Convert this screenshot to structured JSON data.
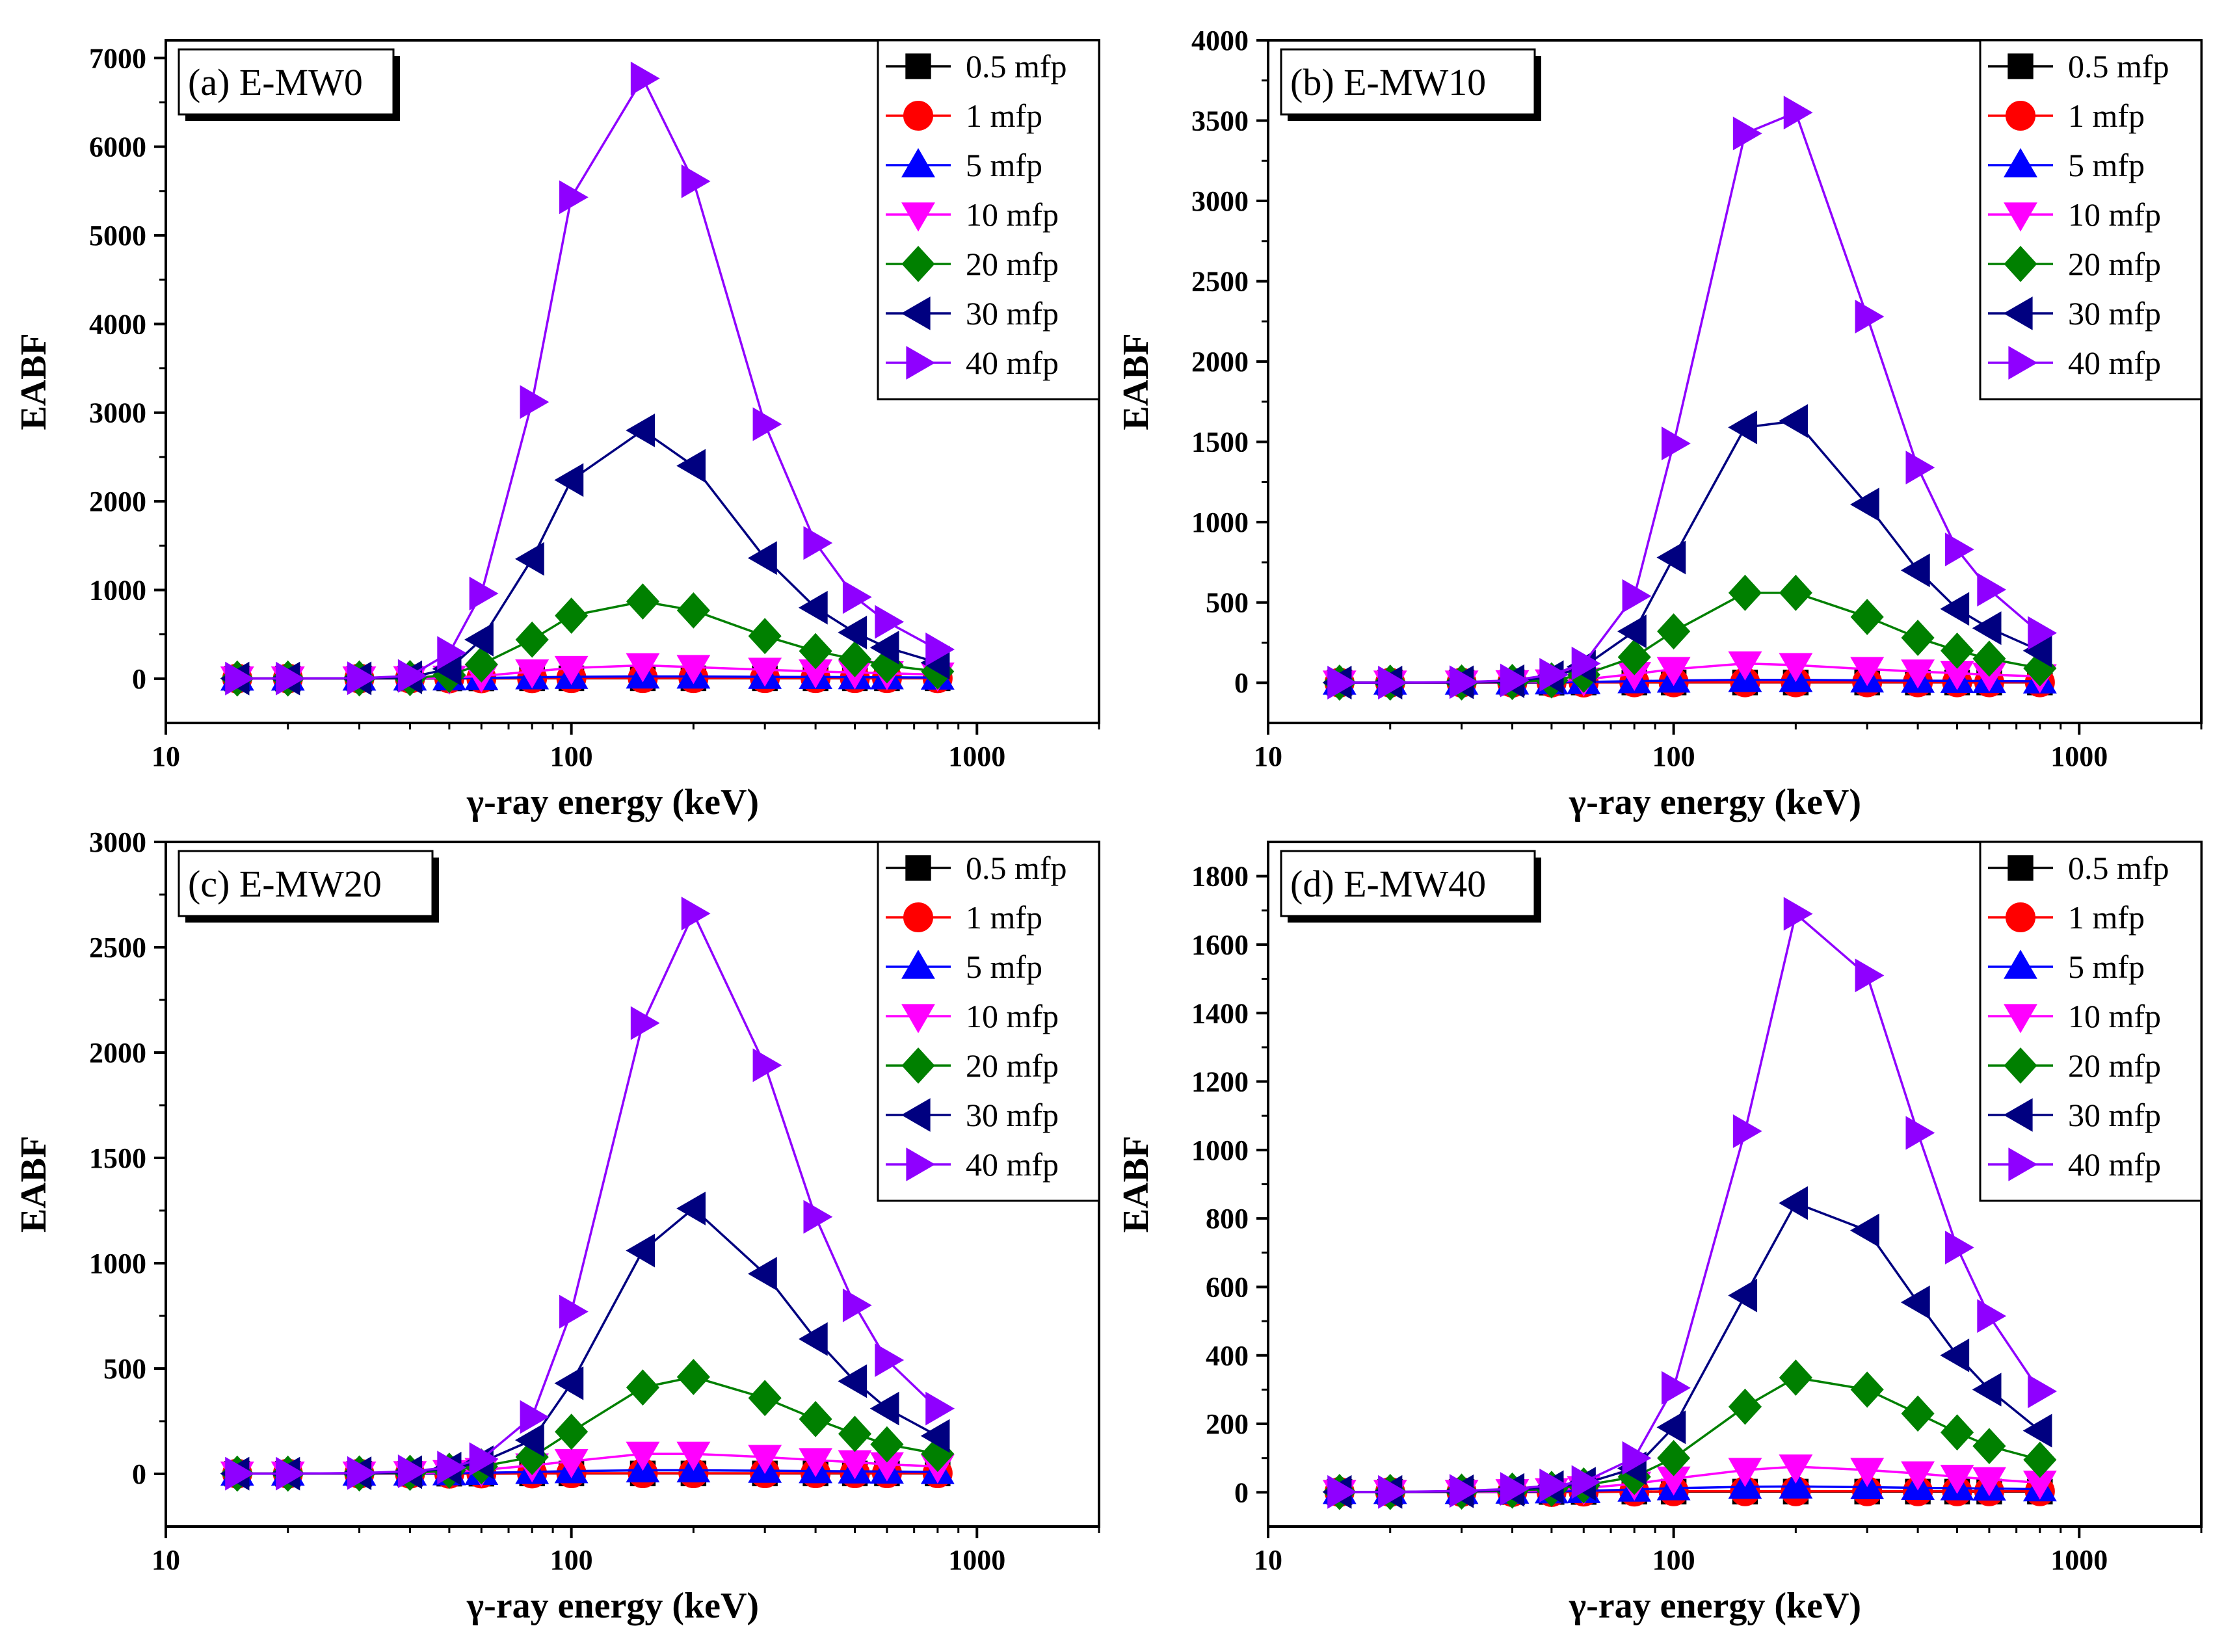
{
  "figure": {
    "colors": {
      "0.5 mfp": "#000000",
      "1 mfp": "#ff0000",
      "5 mfp": "#0000ff",
      "10 mfp": "#ff00ff",
      "20 mfp": "#008000",
      "30 mfp": "#000080",
      "40 mfp": "#8f00ff"
    }
  },
  "chart_data": [
    {
      "type": "line",
      "title": "(a) E-MW0",
      "xlabel": "γ-ray energy (keV)",
      "ylabel": "EABF",
      "xscale": "log",
      "xlim": [
        10,
        2000
      ],
      "ylim": [
        -500,
        7200
      ],
      "x_ticks": [
        10,
        100,
        1000
      ],
      "x_tick_labels": [
        "10",
        "100",
        "1000"
      ],
      "y_ticks": [
        0,
        1000,
        2000,
        3000,
        4000,
        5000,
        6000,
        7000
      ],
      "y_tick_labels": [
        "0",
        "1000",
        "2000",
        "3000",
        "4000",
        "5000",
        "6000",
        "7000"
      ],
      "legend_position": "top-right",
      "x": [
        15,
        20,
        30,
        40,
        50,
        60,
        80,
        100,
        150,
        200,
        300,
        400,
        500,
        600,
        800
      ],
      "series": [
        {
          "name": "0.5 mfp",
          "marker": "square",
          "values": [
            1,
            1,
            1,
            1,
            2,
            2,
            3,
            3,
            3,
            3,
            3,
            3,
            3,
            3,
            3
          ]
        },
        {
          "name": "1 mfp",
          "marker": "circle",
          "values": [
            1,
            1,
            1,
            1,
            2,
            3,
            4,
            5,
            5,
            5,
            5,
            5,
            5,
            5,
            4
          ]
        },
        {
          "name": "5 mfp",
          "marker": "triangle-up",
          "values": [
            1,
            1,
            1,
            2,
            4,
            8,
            15,
            20,
            25,
            24,
            20,
            18,
            16,
            15,
            12
          ]
        },
        {
          "name": "10 mfp",
          "marker": "triangle-down",
          "values": [
            1,
            1,
            1,
            3,
            10,
            30,
            80,
            120,
            150,
            130,
            100,
            80,
            70,
            60,
            45
          ]
        },
        {
          "name": "20 mfp",
          "marker": "diamond",
          "values": [
            1,
            1,
            2,
            6,
            40,
            160,
            440,
            710,
            870,
            770,
            480,
            310,
            220,
            150,
            80
          ]
        },
        {
          "name": "30 mfp",
          "marker": "triangle-left",
          "values": [
            1,
            1,
            3,
            15,
            110,
            440,
            1350,
            2240,
            2800,
            2400,
            1360,
            800,
            520,
            350,
            180
          ]
        },
        {
          "name": "40 mfp",
          "marker": "triangle-right",
          "values": [
            1,
            1,
            5,
            30,
            290,
            960,
            3120,
            5430,
            6770,
            5610,
            2870,
            1530,
            920,
            640,
            330
          ]
        }
      ]
    },
    {
      "type": "line",
      "title": "(b) E-MW10",
      "xlabel": "γ-ray energy (keV)",
      "ylabel": "EABF",
      "xscale": "log",
      "xlim": [
        10,
        2000
      ],
      "ylim": [
        -250,
        4000
      ],
      "x_ticks": [
        10,
        100,
        1000
      ],
      "x_tick_labels": [
        "10",
        "100",
        "1000"
      ],
      "y_ticks": [
        0,
        500,
        1000,
        1500,
        2000,
        2500,
        3000,
        3500,
        4000
      ],
      "y_tick_labels": [
        "0",
        "500",
        "1000",
        "1500",
        "2000",
        "2500",
        "3000",
        "3500",
        "4000"
      ],
      "legend_position": "top-right",
      "x": [
        15,
        20,
        30,
        40,
        50,
        60,
        80,
        100,
        150,
        200,
        300,
        400,
        500,
        600,
        800
      ],
      "series": [
        {
          "name": "0.5 mfp",
          "marker": "square",
          "values": [
            1,
            1,
            1,
            1,
            1,
            2,
            2,
            2,
            2,
            2,
            2,
            2,
            2,
            2,
            2
          ]
        },
        {
          "name": "1 mfp",
          "marker": "circle",
          "values": [
            1,
            1,
            1,
            1,
            2,
            2,
            3,
            3,
            3,
            3,
            3,
            3,
            3,
            3,
            3
          ]
        },
        {
          "name": "5 mfp",
          "marker": "triangle-up",
          "values": [
            1,
            1,
            1,
            2,
            3,
            5,
            10,
            14,
            18,
            18,
            15,
            13,
            12,
            11,
            9
          ]
        },
        {
          "name": "10 mfp",
          "marker": "triangle-down",
          "values": [
            1,
            1,
            1,
            3,
            8,
            20,
            55,
            85,
            120,
            110,
            85,
            70,
            60,
            50,
            40
          ]
        },
        {
          "name": "20 mfp",
          "marker": "diamond",
          "values": [
            1,
            1,
            2,
            5,
            15,
            50,
            160,
            320,
            560,
            560,
            410,
            280,
            200,
            150,
            90
          ]
        },
        {
          "name": "30 mfp",
          "marker": "triangle-left",
          "values": [
            1,
            1,
            3,
            10,
            35,
            100,
            320,
            780,
            1590,
            1630,
            1110,
            700,
            460,
            340,
            200
          ]
        },
        {
          "name": "40 mfp",
          "marker": "triangle-right",
          "values": [
            1,
            1,
            4,
            15,
            50,
            120,
            540,
            1490,
            3420,
            3550,
            2280,
            1340,
            830,
            580,
            310
          ]
        }
      ]
    },
    {
      "type": "line",
      "title": "(c) E-MW20",
      "xlabel": "γ-ray energy (keV)",
      "ylabel": "EABF",
      "xscale": "log",
      "xlim": [
        10,
        2000
      ],
      "ylim": [
        -250,
        3000
      ],
      "x_ticks": [
        10,
        100,
        1000
      ],
      "x_tick_labels": [
        "10",
        "100",
        "1000"
      ],
      "y_ticks": [
        0,
        500,
        1000,
        1500,
        2000,
        2500,
        3000
      ],
      "y_tick_labels": [
        "0",
        "500",
        "1000",
        "1500",
        "2000",
        "2500",
        "3000"
      ],
      "legend_position": "top-right",
      "x": [
        15,
        20,
        30,
        40,
        50,
        60,
        80,
        100,
        150,
        200,
        300,
        400,
        500,
        600,
        800
      ],
      "series": [
        {
          "name": "0.5 mfp",
          "marker": "square",
          "values": [
            1,
            1,
            1,
            1,
            1,
            1,
            2,
            2,
            2,
            2,
            2,
            2,
            2,
            2,
            2
          ]
        },
        {
          "name": "1 mfp",
          "marker": "circle",
          "values": [
            1,
            1,
            1,
            1,
            1,
            2,
            2,
            3,
            3,
            3,
            3,
            3,
            3,
            3,
            3
          ]
        },
        {
          "name": "5 mfp",
          "marker": "triangle-up",
          "values": [
            1,
            1,
            1,
            2,
            3,
            5,
            9,
            13,
            17,
            17,
            15,
            13,
            12,
            11,
            9
          ]
        },
        {
          "name": "10 mfp",
          "marker": "triangle-down",
          "values": [
            1,
            1,
            1,
            3,
            8,
            18,
            40,
            60,
            95,
            95,
            80,
            65,
            55,
            45,
            35
          ]
        },
        {
          "name": "20 mfp",
          "marker": "diamond",
          "values": [
            1,
            1,
            2,
            5,
            15,
            35,
            80,
            200,
            410,
            460,
            360,
            260,
            190,
            140,
            95
          ]
        },
        {
          "name": "30 mfp",
          "marker": "triangle-left",
          "values": [
            1,
            1,
            3,
            8,
            25,
            55,
            160,
            430,
            1060,
            1260,
            950,
            640,
            440,
            310,
            180
          ]
        },
        {
          "name": "40 mfp",
          "marker": "triangle-right",
          "values": [
            1,
            1,
            4,
            12,
            30,
            70,
            270,
            770,
            2140,
            2660,
            1940,
            1220,
            800,
            540,
            310
          ]
        }
      ]
    },
    {
      "type": "line",
      "title": "(d) E-MW40",
      "xlabel": "γ-ray energy (keV)",
      "ylabel": "EABF",
      "xscale": "log",
      "xlim": [
        10,
        2000
      ],
      "ylim": [
        -100,
        1900
      ],
      "x_ticks": [
        10,
        100,
        1000
      ],
      "x_tick_labels": [
        "10",
        "100",
        "1000"
      ],
      "y_ticks": [
        0,
        200,
        400,
        600,
        800,
        1000,
        1200,
        1400,
        1600,
        1800
      ],
      "y_tick_labels": [
        "0",
        "200",
        "400",
        "600",
        "800",
        "1000",
        "1200",
        "1400",
        "1600",
        "1800"
      ],
      "legend_position": "top-right",
      "x": [
        15,
        20,
        30,
        40,
        50,
        60,
        80,
        100,
        150,
        200,
        300,
        400,
        500,
        600,
        800
      ],
      "series": [
        {
          "name": "0.5 mfp",
          "marker": "square",
          "values": [
            1,
            1,
            1,
            1,
            1,
            1,
            2,
            2,
            2,
            2,
            2,
            2,
            2,
            2,
            2
          ]
        },
        {
          "name": "1 mfp",
          "marker": "circle",
          "values": [
            1,
            1,
            1,
            1,
            1,
            2,
            2,
            3,
            3,
            3,
            3,
            3,
            3,
            3,
            3
          ]
        },
        {
          "name": "5 mfp",
          "marker": "triangle-up",
          "values": [
            1,
            1,
            1,
            2,
            3,
            4,
            8,
            12,
            16,
            17,
            15,
            13,
            12,
            11,
            9
          ]
        },
        {
          "name": "10 mfp",
          "marker": "triangle-down",
          "values": [
            1,
            1,
            1,
            3,
            6,
            12,
            25,
            40,
            65,
            75,
            65,
            55,
            45,
            38,
            28
          ]
        },
        {
          "name": "20 mfp",
          "marker": "diamond",
          "values": [
            1,
            1,
            2,
            5,
            10,
            20,
            45,
            100,
            250,
            335,
            300,
            230,
            175,
            135,
            95
          ]
        },
        {
          "name": "30 mfp",
          "marker": "triangle-left",
          "values": [
            1,
            1,
            3,
            7,
            15,
            25,
            70,
            190,
            575,
            845,
            765,
            555,
            400,
            300,
            180
          ]
        },
        {
          "name": "40 mfp",
          "marker": "triangle-right",
          "values": [
            1,
            1,
            4,
            10,
            20,
            30,
            100,
            305,
            1055,
            1690,
            1510,
            1050,
            715,
            515,
            295
          ]
        }
      ]
    }
  ]
}
